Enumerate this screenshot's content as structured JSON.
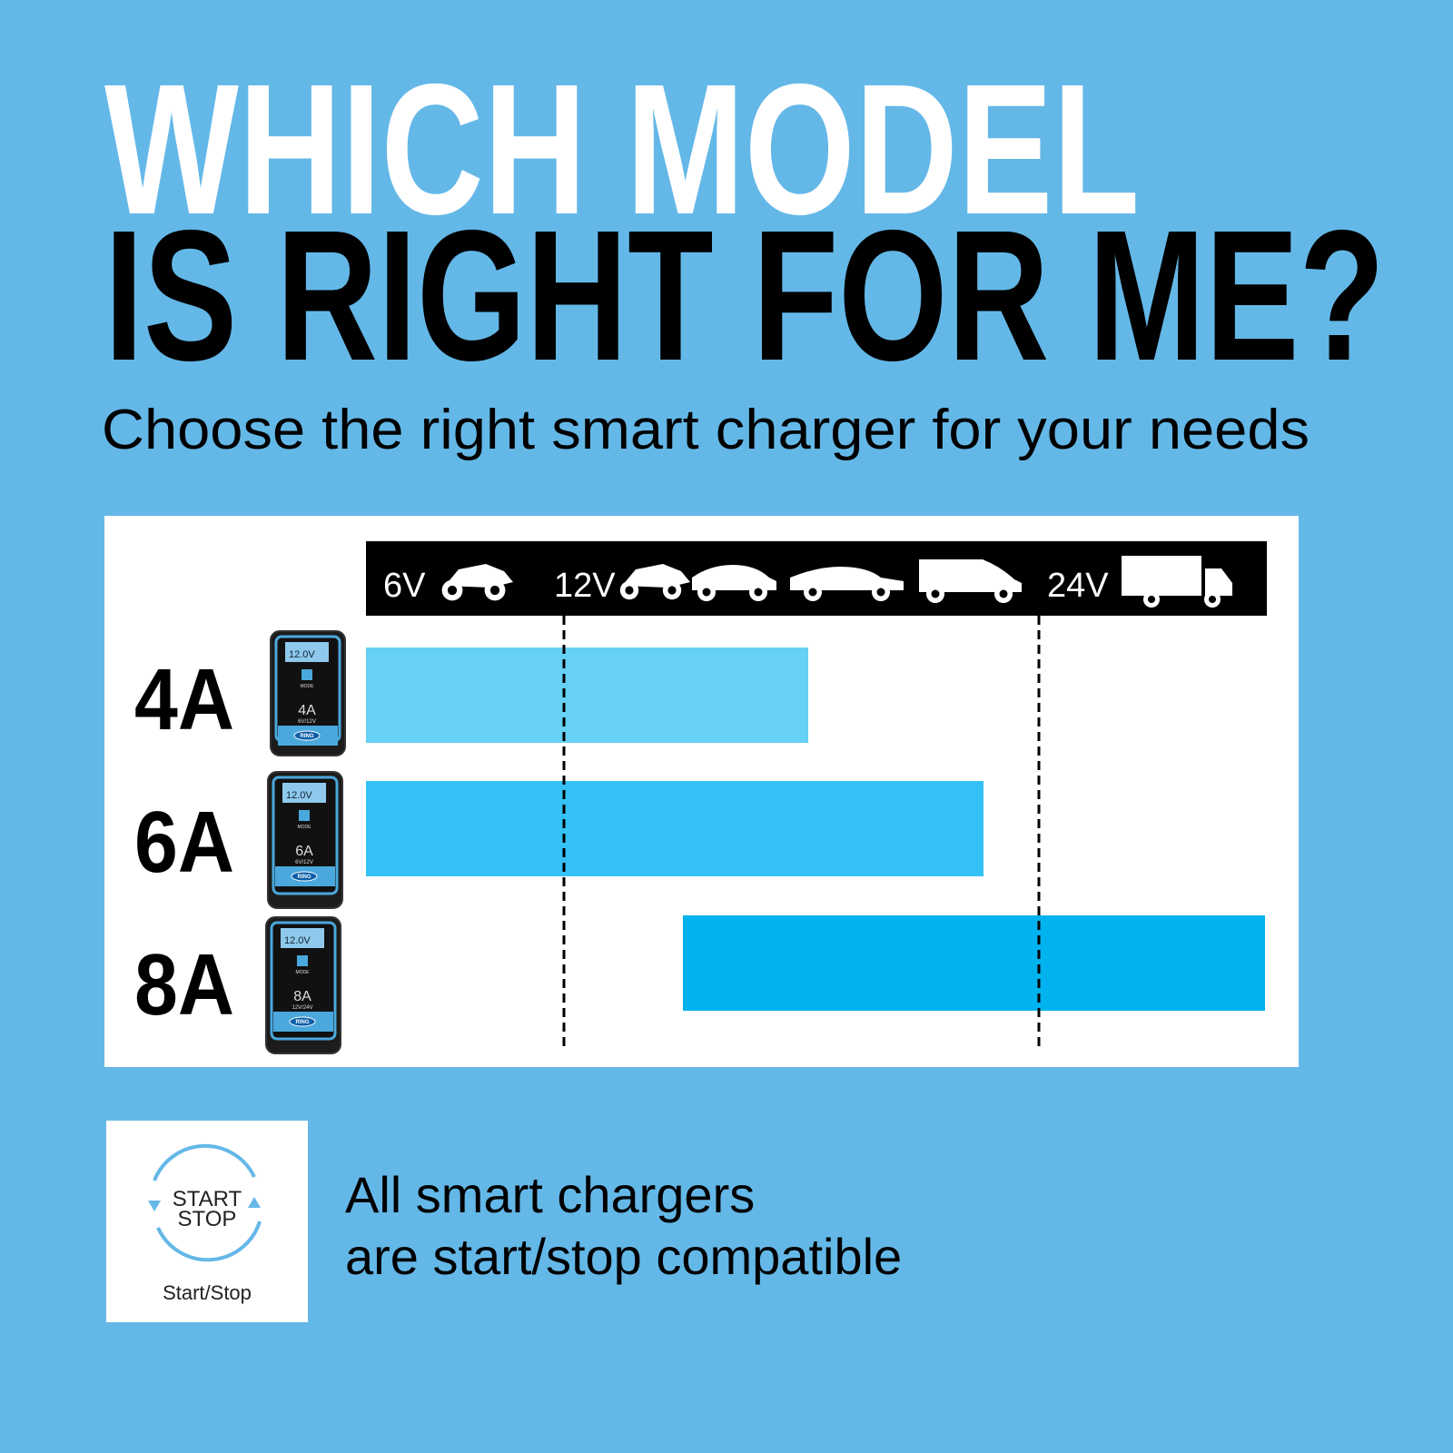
{
  "header": {
    "title_line1": "WHICH MODEL",
    "title_line2": "IS RIGHT FOR ME?",
    "subtitle": "Choose the right smart charger for your needs"
  },
  "comparison": {
    "voltage_labels": [
      "6V",
      "12V",
      "24V"
    ],
    "models": [
      {
        "label": "4A",
        "device": {
          "display": "12.0V",
          "mode": "MODE",
          "rating": "4A",
          "voltage": "6V/12V",
          "brand": "RING"
        }
      },
      {
        "label": "6A",
        "device": {
          "display": "12.0V",
          "mode": "MODE",
          "rating": "6A",
          "voltage": "6V/12V",
          "brand": "RING"
        }
      },
      {
        "label": "8A",
        "device": {
          "display": "12.0V",
          "mode": "MODE",
          "rating": "8A",
          "voltage": "12V/24V",
          "brand": "RING"
        }
      }
    ]
  },
  "footer": {
    "badge": {
      "icon_text_line1": "START",
      "icon_text_line2": "STOP",
      "caption": "Start/Stop"
    },
    "text_line1": "All smart chargers",
    "text_line2": "are start/stop compatible"
  }
}
